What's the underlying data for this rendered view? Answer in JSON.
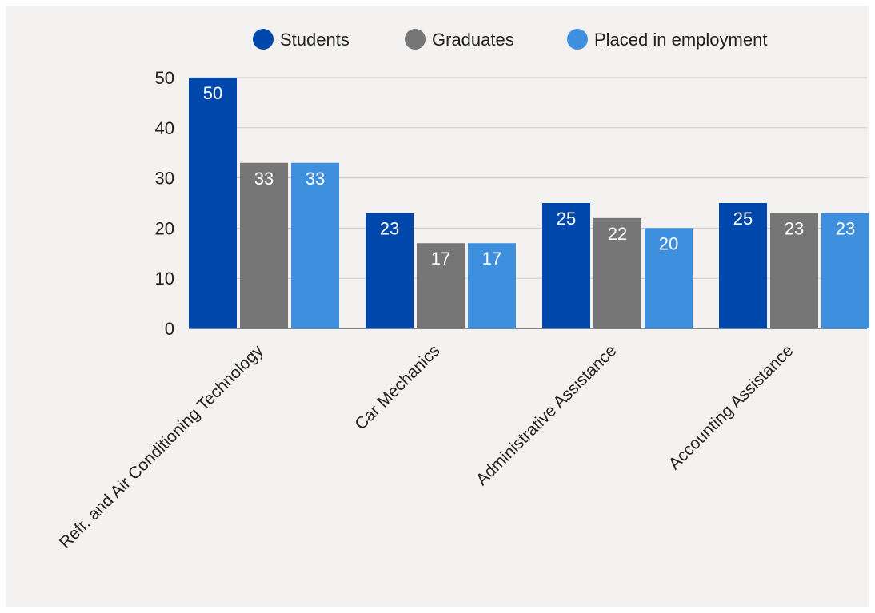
{
  "chart_data": {
    "type": "bar",
    "categories": [
      "Refr. and Air Conditioning Technology",
      "Car Mechanics",
      "Administrative Assistance",
      "Accounting Assistance"
    ],
    "series": [
      {
        "name": "Students",
        "values": [
          50,
          23,
          25,
          25
        ],
        "color": "#0047ab"
      },
      {
        "name": "Graduates",
        "values": [
          33,
          17,
          22,
          23
        ],
        "color": "#767676"
      },
      {
        "name": "Placed in employment",
        "values": [
          33,
          17,
          20,
          23
        ],
        "color": "#3f8fdf"
      }
    ],
    "y_ticks": [
      "0",
      "10",
      "20",
      "30",
      "40",
      "50"
    ],
    "ylim": [
      0,
      50
    ],
    "title": "",
    "xlabel": "",
    "ylabel": "",
    "grid": true,
    "legend_position": "top"
  }
}
